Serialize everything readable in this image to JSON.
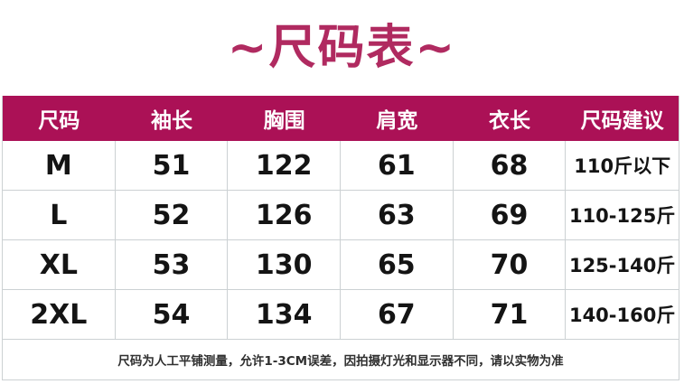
{
  "title": "~尺码表~",
  "colors": {
    "accent": "#ab1156",
    "title_text": "#b02a60",
    "header_text": "#ffffff",
    "grid_line": "#ccd1d3",
    "body_text": "#141414"
  },
  "chart_data": {
    "type": "table",
    "title": "~尺码表~",
    "columns": [
      "尺码",
      "袖长",
      "胸围",
      "肩宽",
      "衣长",
      "尺码建议"
    ],
    "rows": [
      [
        "M",
        "51",
        "122",
        "61",
        "68",
        "110斤以下"
      ],
      [
        "L",
        "52",
        "126",
        "63",
        "69",
        "110-125斤"
      ],
      [
        "XL",
        "53",
        "130",
        "65",
        "70",
        "125-140斤"
      ],
      [
        "2XL",
        "54",
        "134",
        "67",
        "71",
        "140-160斤"
      ]
    ],
    "note": "尺码为人工平铺测量，允许1-3CM误差，因拍摄灯光和显示器不同，请以实物为准",
    "layout": {
      "grid": "on",
      "header_position": "top",
      "units": "cm"
    }
  }
}
